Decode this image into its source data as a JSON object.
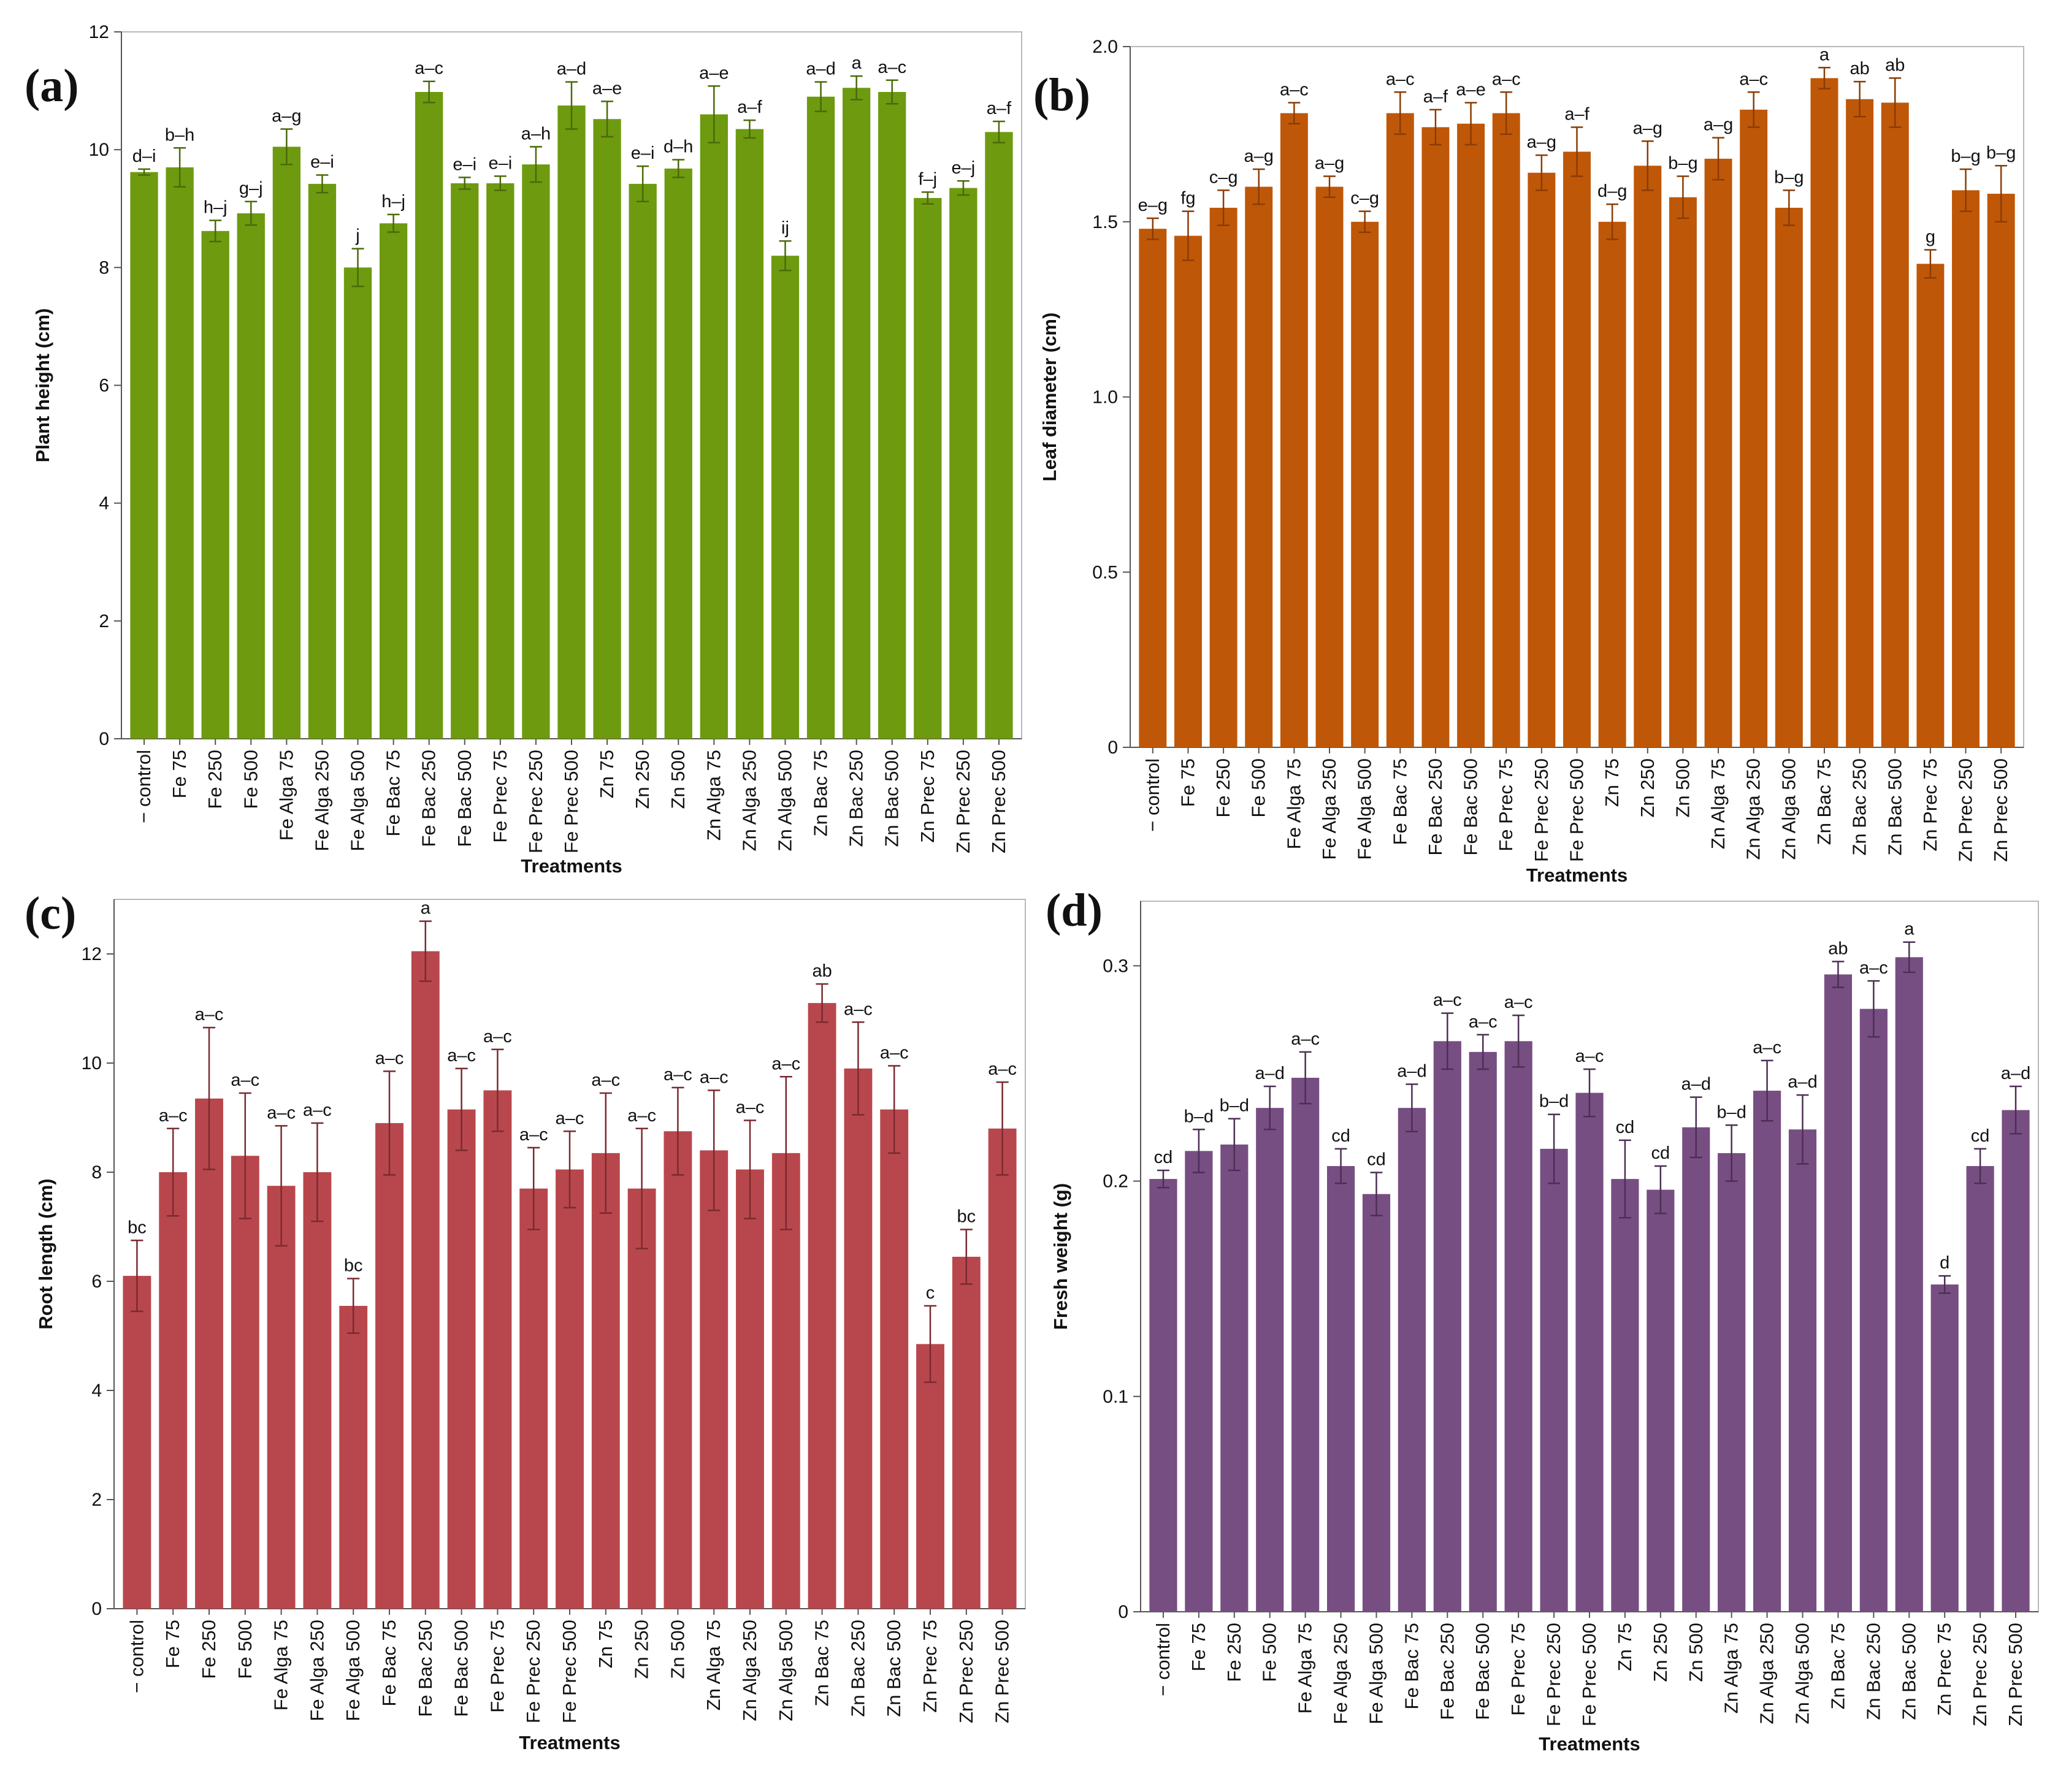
{
  "chart_data": [
    {
      "panel": "(a)",
      "type": "bar",
      "color": "#6e9a10",
      "error_color": "#4a6a08",
      "xlabel": "Treatments",
      "ylabel": "Plant height (cm)",
      "ylim": [
        0,
        12
      ],
      "yticks": [
        0,
        2,
        4,
        6,
        8,
        10,
        12
      ],
      "ytick_labels": [
        "0",
        "2",
        "4",
        "6",
        "8",
        "10",
        "12"
      ],
      "categories": [
        "− control",
        "Fe 75",
        "Fe 250",
        "Fe 500",
        "Fe Alga 75",
        "Fe Alga 250",
        "Fe Alga 500",
        "Fe Bac 75",
        "Fe Bac 250",
        "Fe Bac 500",
        "Fe Prec 75",
        "Fe Prec 250",
        "Fe Prec 500",
        "Zn 75",
        "Zn 250",
        "Zn 500",
        "Zn Alga 75",
        "Zn Alga 250",
        "Zn Alga 500",
        "Zn Bac 75",
        "Zn Bac 250",
        "Zn Bac 500",
        "Zn Prec 75",
        "Zn Prec 250",
        "Zn Prec 500"
      ],
      "values": [
        9.62,
        9.7,
        8.62,
        8.92,
        10.05,
        9.42,
        8.0,
        8.75,
        10.98,
        9.43,
        9.43,
        9.75,
        10.75,
        10.52,
        9.42,
        9.68,
        10.6,
        10.35,
        8.2,
        10.9,
        11.05,
        10.98,
        9.18,
        9.35,
        10.3
      ],
      "errors": [
        0.05,
        0.33,
        0.18,
        0.2,
        0.3,
        0.15,
        0.32,
        0.15,
        0.18,
        0.1,
        0.12,
        0.3,
        0.4,
        0.3,
        0.3,
        0.15,
        0.48,
        0.15,
        0.25,
        0.25,
        0.2,
        0.2,
        0.1,
        0.12,
        0.18
      ],
      "letters": [
        "d–i",
        "b–h",
        "h–j",
        "g–j",
        "a–g",
        "e–i",
        "j",
        "h–j",
        "a–c",
        "e–i",
        "e–i",
        "a–h",
        "a–d",
        "a–e",
        "e–i",
        "d–h",
        "a–e",
        "a–f",
        "ij",
        "a–d",
        "a",
        "a–c",
        "f–j",
        "e–j",
        "a–f"
      ]
    },
    {
      "panel": "(b)",
      "type": "bar",
      "color": "#bf5708",
      "error_color": "#8a3c04",
      "xlabel": "Treatments",
      "ylabel": "Leaf diameter (cm)",
      "ylim": [
        0,
        2.0
      ],
      "yticks": [
        0,
        0.5,
        1.0,
        1.5,
        2.0
      ],
      "ytick_labels": [
        "0",
        "0.5",
        "1.0",
        "1.5",
        "2.0"
      ],
      "categories": [
        "− control",
        "Fe 75",
        "Fe 250",
        "Fe 500",
        "Fe Alga 75",
        "Fe Alga 250",
        "Fe Alga 500",
        "Fe Bac 75",
        "Fe Bac 250",
        "Fe Bac 500",
        "Fe Prec 75",
        "Fe Prec 250",
        "Fe Prec 500",
        "Zn 75",
        "Zn 250",
        "Zn 500",
        "Zn Alga 75",
        "Zn Alga 250",
        "Zn Alga 500",
        "Zn Bac 75",
        "Zn Bac 250",
        "Zn Bac 500",
        "Zn Prec 75",
        "Zn Prec 250",
        "Zn Prec 500"
      ],
      "values": [
        1.48,
        1.46,
        1.54,
        1.6,
        1.81,
        1.6,
        1.5,
        1.81,
        1.77,
        1.78,
        1.81,
        1.64,
        1.7,
        1.5,
        1.66,
        1.57,
        1.68,
        1.82,
        1.54,
        1.91,
        1.85,
        1.84,
        1.38,
        1.59,
        1.58
      ],
      "errors": [
        0.03,
        0.07,
        0.05,
        0.05,
        0.03,
        0.03,
        0.03,
        0.06,
        0.05,
        0.06,
        0.06,
        0.05,
        0.07,
        0.05,
        0.07,
        0.06,
        0.06,
        0.05,
        0.05,
        0.03,
        0.05,
        0.07,
        0.04,
        0.06,
        0.08
      ],
      "letters": [
        "e–g",
        "fg",
        "c–g",
        "a–g",
        "a–c",
        "a–g",
        "c–g",
        "a–c",
        "a–f",
        "a–e",
        "a–c",
        "a–g",
        "a–f",
        "d–g",
        "a–g",
        "b–g",
        "a–g",
        "a–c",
        "b–g",
        "a",
        "ab",
        "ab",
        "g",
        "b–g",
        "b–g"
      ]
    },
    {
      "panel": "(c)",
      "type": "bar",
      "color": "#b8474d",
      "error_color": "#7a2a30",
      "xlabel": "Treatments",
      "ylabel": "Root length (cm)",
      "ylim": [
        0,
        13
      ],
      "yticks": [
        0,
        2,
        4,
        6,
        8,
        10,
        12
      ],
      "ytick_labels": [
        "0",
        "2",
        "4",
        "6",
        "8",
        "10",
        "12"
      ],
      "categories": [
        "− control",
        "Fe 75",
        "Fe 250",
        "Fe 500",
        "Fe Alga 75",
        "Fe Alga 250",
        "Fe Alga 500",
        "Fe Bac 75",
        "Fe Bac 250",
        "Fe Bac 500",
        "Fe Prec 75",
        "Fe Prec 250",
        "Fe Prec 500",
        "Zn 75",
        "Zn 250",
        "Zn 500",
        "Zn Alga 75",
        "Zn Alga 250",
        "Zn Alga 500",
        "Zn Bac 75",
        "Zn Bac 250",
        "Zn Bac 500",
        "Zn Prec 75",
        "Zn Prec 250",
        "Zn Prec 500"
      ],
      "values": [
        6.1,
        8.0,
        9.35,
        8.3,
        7.75,
        8.0,
        5.55,
        8.9,
        12.05,
        9.15,
        9.5,
        7.7,
        8.05,
        8.35,
        7.7,
        8.75,
        8.4,
        8.05,
        8.35,
        11.1,
        9.9,
        9.15,
        4.85,
        6.45,
        8.8
      ],
      "errors": [
        0.65,
        0.8,
        1.3,
        1.15,
        1.1,
        0.9,
        0.5,
        0.95,
        0.55,
        0.75,
        0.75,
        0.75,
        0.7,
        1.1,
        1.1,
        0.8,
        1.1,
        0.9,
        1.4,
        0.35,
        0.85,
        0.8,
        0.7,
        0.5,
        0.85
      ],
      "letters": [
        "bc",
        "a–c",
        "a–c",
        "a–c",
        "a–c",
        "a–c",
        "bc",
        "a–c",
        "a",
        "a–c",
        "a–c",
        "a–c",
        "a–c",
        "a–c",
        "a–c",
        "a–c",
        "a–c",
        "a–c",
        "a–c",
        "ab",
        "a–c",
        "a–c",
        "c",
        "bc",
        "a–c"
      ]
    },
    {
      "panel": "(d)",
      "type": "bar",
      "color": "#774e82",
      "error_color": "#4c2f55",
      "xlabel": "Treatments",
      "ylabel": "Fresh weight (g)",
      "ylim": [
        0,
        0.33
      ],
      "yticks": [
        0,
        0.1,
        0.2,
        0.3
      ],
      "ytick_labels": [
        "0",
        "0.1",
        "0.2",
        "0.3"
      ],
      "categories": [
        "− control",
        "Fe 75",
        "Fe 250",
        "Fe 500",
        "Fe Alga 75",
        "Fe Alga 250",
        "Fe Alga 500",
        "Fe Bac 75",
        "Fe Bac 250",
        "Fe Bac 500",
        "Fe Prec 75",
        "Fe Prec 250",
        "Fe Prec 500",
        "Zn 75",
        "Zn 250",
        "Zn 500",
        "Zn Alga 75",
        "Zn Alga 250",
        "Zn Alga 500",
        "Zn Bac 75",
        "Zn Bac 250",
        "Zn Bac 500",
        "Zn Prec 75",
        "Zn Prec 250",
        "Zn Prec 500"
      ],
      "values": [
        0.201,
        0.214,
        0.217,
        0.234,
        0.248,
        0.207,
        0.194,
        0.234,
        0.265,
        0.26,
        0.265,
        0.215,
        0.241,
        0.201,
        0.196,
        0.225,
        0.213,
        0.242,
        0.224,
        0.296,
        0.28,
        0.304,
        0.152,
        0.207,
        0.233
      ],
      "errors": [
        0.004,
        0.01,
        0.012,
        0.01,
        0.012,
        0.008,
        0.01,
        0.011,
        0.013,
        0.008,
        0.012,
        0.016,
        0.011,
        0.018,
        0.011,
        0.014,
        0.013,
        0.014,
        0.016,
        0.006,
        0.013,
        0.007,
        0.004,
        0.008,
        0.011
      ],
      "letters": [
        "cd",
        "b–d",
        "b–d",
        "a–d",
        "a–c",
        "cd",
        "cd",
        "a–d",
        "a–c",
        "a–c",
        "a–c",
        "b–d",
        "a–c",
        "cd",
        "cd",
        "a–d",
        "b–d",
        "a–c",
        "a–d",
        "ab",
        "a–c",
        "a",
        "d",
        "cd",
        "a–d"
      ]
    }
  ]
}
